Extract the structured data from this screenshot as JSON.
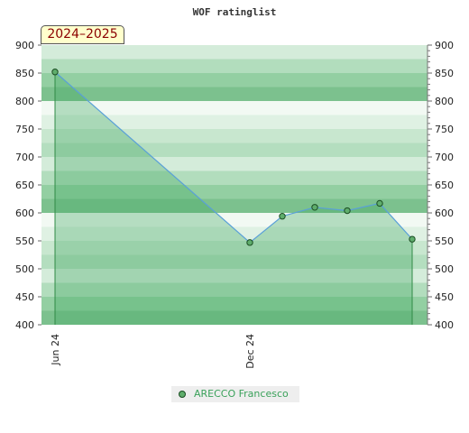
{
  "chart_data": {
    "type": "area",
    "title": "WOF ratinglist",
    "period_label": "2024–2025",
    "x_tick_labels": [
      "Jun 24",
      "Dec 24"
    ],
    "ylim": [
      400,
      900
    ],
    "y_ticks": [
      400,
      450,
      500,
      550,
      600,
      650,
      700,
      750,
      800,
      850,
      900
    ],
    "series": [
      {
        "name": "ARECCO Francesco",
        "color": "#5fad6c",
        "points": [
          {
            "x": "2024-06",
            "y": 852
          },
          {
            "x": "2024-12",
            "y": 547
          },
          {
            "x": "2025-01",
            "y": 594
          },
          {
            "x": "2025-02",
            "y": 610
          },
          {
            "x": "2025-03",
            "y": 604
          },
          {
            "x": "2025-04",
            "y": 617
          },
          {
            "x": "2025-05",
            "y": 553
          }
        ]
      }
    ],
    "grid": true,
    "legend_position": "bottom"
  }
}
